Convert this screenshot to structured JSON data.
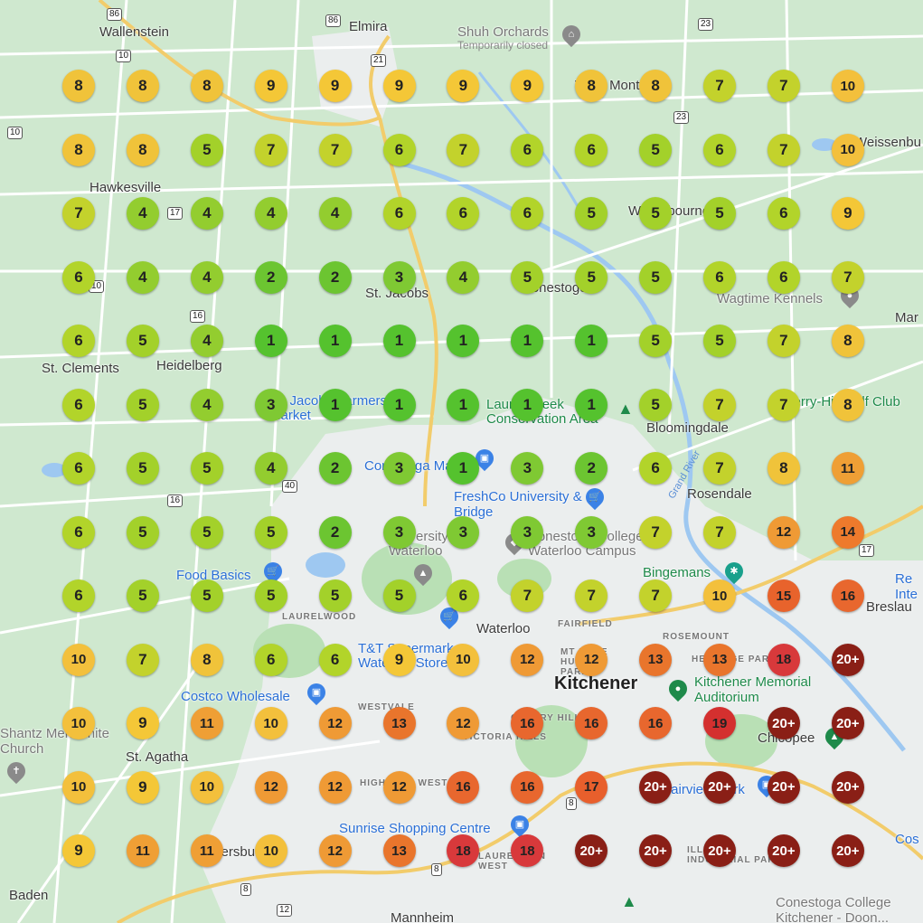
{
  "places": {
    "wallenstein": "Wallenstein",
    "elmira": "Elmira",
    "shuh": "Shuh Orchards",
    "shuh_status": "Temporarily closed",
    "west_montrose": "West Montrose",
    "weissenburg": "Weissenbu",
    "hawkesville": "Hawkesville",
    "winterbourne": "Winterbourne",
    "st_jacobs": "St. Jacobs",
    "conestogo": "Conestogo",
    "wagtime": "Wagtime Kennels",
    "mar": "Mar",
    "st_clements": "St. Clements",
    "heidelberg": "Heidelberg",
    "farmers_market": "St. Jacobs Farmers' Market",
    "lauriers": "Laurel Creek Conservation Area",
    "bloomingdale": "Bloomingdale",
    "golf": "Merry-Hill Golf Club",
    "conestoga_mall": "Conestoga Mall",
    "freshco": "FreshCo University & Bridge",
    "rosendale": "Rosendale",
    "grand_river": "Grand River",
    "univ_waterloo": "University of Waterloo",
    "conestoga_college": "Conestoga College Waterloo Campus",
    "bingemans": "Bingemans",
    "food_basics": "Food Basics",
    "breslau": "Breslau",
    "re_inte": "Re Inte",
    "laurelwood": "LAURELWOOD",
    "waterloo": "Waterloo",
    "fairfield": "FAIRFIELD",
    "rosemount": "ROSEMOUNT",
    "tt": "T&T Supermarket Waterloo Store",
    "mt_hope": "MT HOPE HURON PARK",
    "heritage_park": "HERITAGE PARK",
    "kitchener": "Kitchener",
    "memorial": "Kitchener Memorial Auditorium",
    "costco": "Costco Wholesale",
    "westvale": "WESTVALE",
    "mennonite": "Shantz Mennonite Church",
    "chicopee": "Chicopee",
    "st_agatha": "St. Agatha",
    "victoria_hills": "VICTORIA HILLS",
    "cherry_hill": "CHERRY HILL",
    "highland_west": "HIGHLAND WEST",
    "fairview": "Fairview Park",
    "sunrise": "Sunrise Shopping Centre",
    "petersburg": "Petersburg",
    "laurentian": "LAURENTIAN WEST",
    "industrial": "ILLIUM INDUSTRIAL PARK",
    "baden": "Baden",
    "mannheim": "Mannheim",
    "conestoga_doon": "Conestoga College Kitchener - Doon...",
    "cos": "Cos"
  },
  "road_shields": [
    "86",
    "86",
    "10",
    "10",
    "21",
    "23",
    "23",
    "17",
    "10",
    "16",
    "40",
    "16",
    "17",
    "8",
    "8",
    "12",
    "8"
  ],
  "grid": {
    "rows": [
      [
        "8",
        "8",
        "8",
        "9",
        "9",
        "9",
        "9",
        "9",
        "8",
        "8",
        "7",
        "7",
        "10"
      ],
      [
        "8",
        "8",
        "5",
        "7",
        "7",
        "6",
        "7",
        "6",
        "6",
        "5",
        "6",
        "7",
        "10"
      ],
      [
        "7",
        "4",
        "4",
        "4",
        "4",
        "6",
        "6",
        "6",
        "5",
        "5",
        "5",
        "6",
        "9"
      ],
      [
        "6",
        "4",
        "4",
        "2",
        "2",
        "3",
        "4",
        "5",
        "5",
        "5",
        "6",
        "6",
        "7"
      ],
      [
        "6",
        "5",
        "4",
        "1",
        "1",
        "1",
        "1",
        "1",
        "1",
        "5",
        "5",
        "7",
        "8"
      ],
      [
        "6",
        "5",
        "4",
        "3",
        "1",
        "1",
        "1",
        "1",
        "1",
        "5",
        "7",
        "7",
        "8"
      ],
      [
        "6",
        "5",
        "5",
        "4",
        "2",
        "3",
        "1",
        "3",
        "2",
        "6",
        "7",
        "8",
        "11"
      ],
      [
        "6",
        "5",
        "5",
        "5",
        "2",
        "3",
        "3",
        "3",
        "3",
        "7",
        "7",
        "12",
        "14"
      ],
      [
        "6",
        "5",
        "5",
        "5",
        "5",
        "5",
        "6",
        "7",
        "7",
        "7",
        "10",
        "15",
        "16"
      ],
      [
        "10",
        "7",
        "8",
        "6",
        "6",
        "9",
        "10",
        "12",
        "12",
        "13",
        "13",
        "18",
        "20+"
      ],
      [
        "10",
        "9",
        "11",
        "10",
        "12",
        "13",
        "12",
        "16",
        "16",
        "16",
        "19",
        "20+",
        "20+"
      ],
      [
        "10",
        "9",
        "10",
        "12",
        "12",
        "12",
        "16",
        "16",
        "17",
        "20+",
        "20+",
        "20+",
        "20+"
      ],
      [
        "9",
        "11",
        "11",
        "10",
        "12",
        "13",
        "18",
        "18",
        "20+",
        "20+",
        "20+",
        "20+",
        "20+"
      ]
    ]
  },
  "rank_colors": {
    "1": "#55c22e",
    "2": "#6cc531",
    "3": "#7fc933",
    "4": "#93cd2f",
    "5": "#a3d12a",
    "6": "#b2d42a",
    "7": "#c3d22c",
    "8": "#f0c33a",
    "9": "#f4c737",
    "10": "#f3c03c",
    "11": "#ef9f35",
    "12": "#ef9a35",
    "13": "#e9752c",
    "14": "#ee7a2c",
    "15": "#e8632c",
    "16": "#e8672e",
    "17": "#e85f2c",
    "18": "#d8393b",
    "19": "#d4302f",
    "20+": "#8a1f16"
  },
  "map_colors": {
    "land": "#cfe8cf",
    "urban": "#ebeeee",
    "water": "#9ec8f1",
    "road": "#ffffff",
    "highway": "#f2cc6b",
    "park": "#b9e0b5"
  }
}
